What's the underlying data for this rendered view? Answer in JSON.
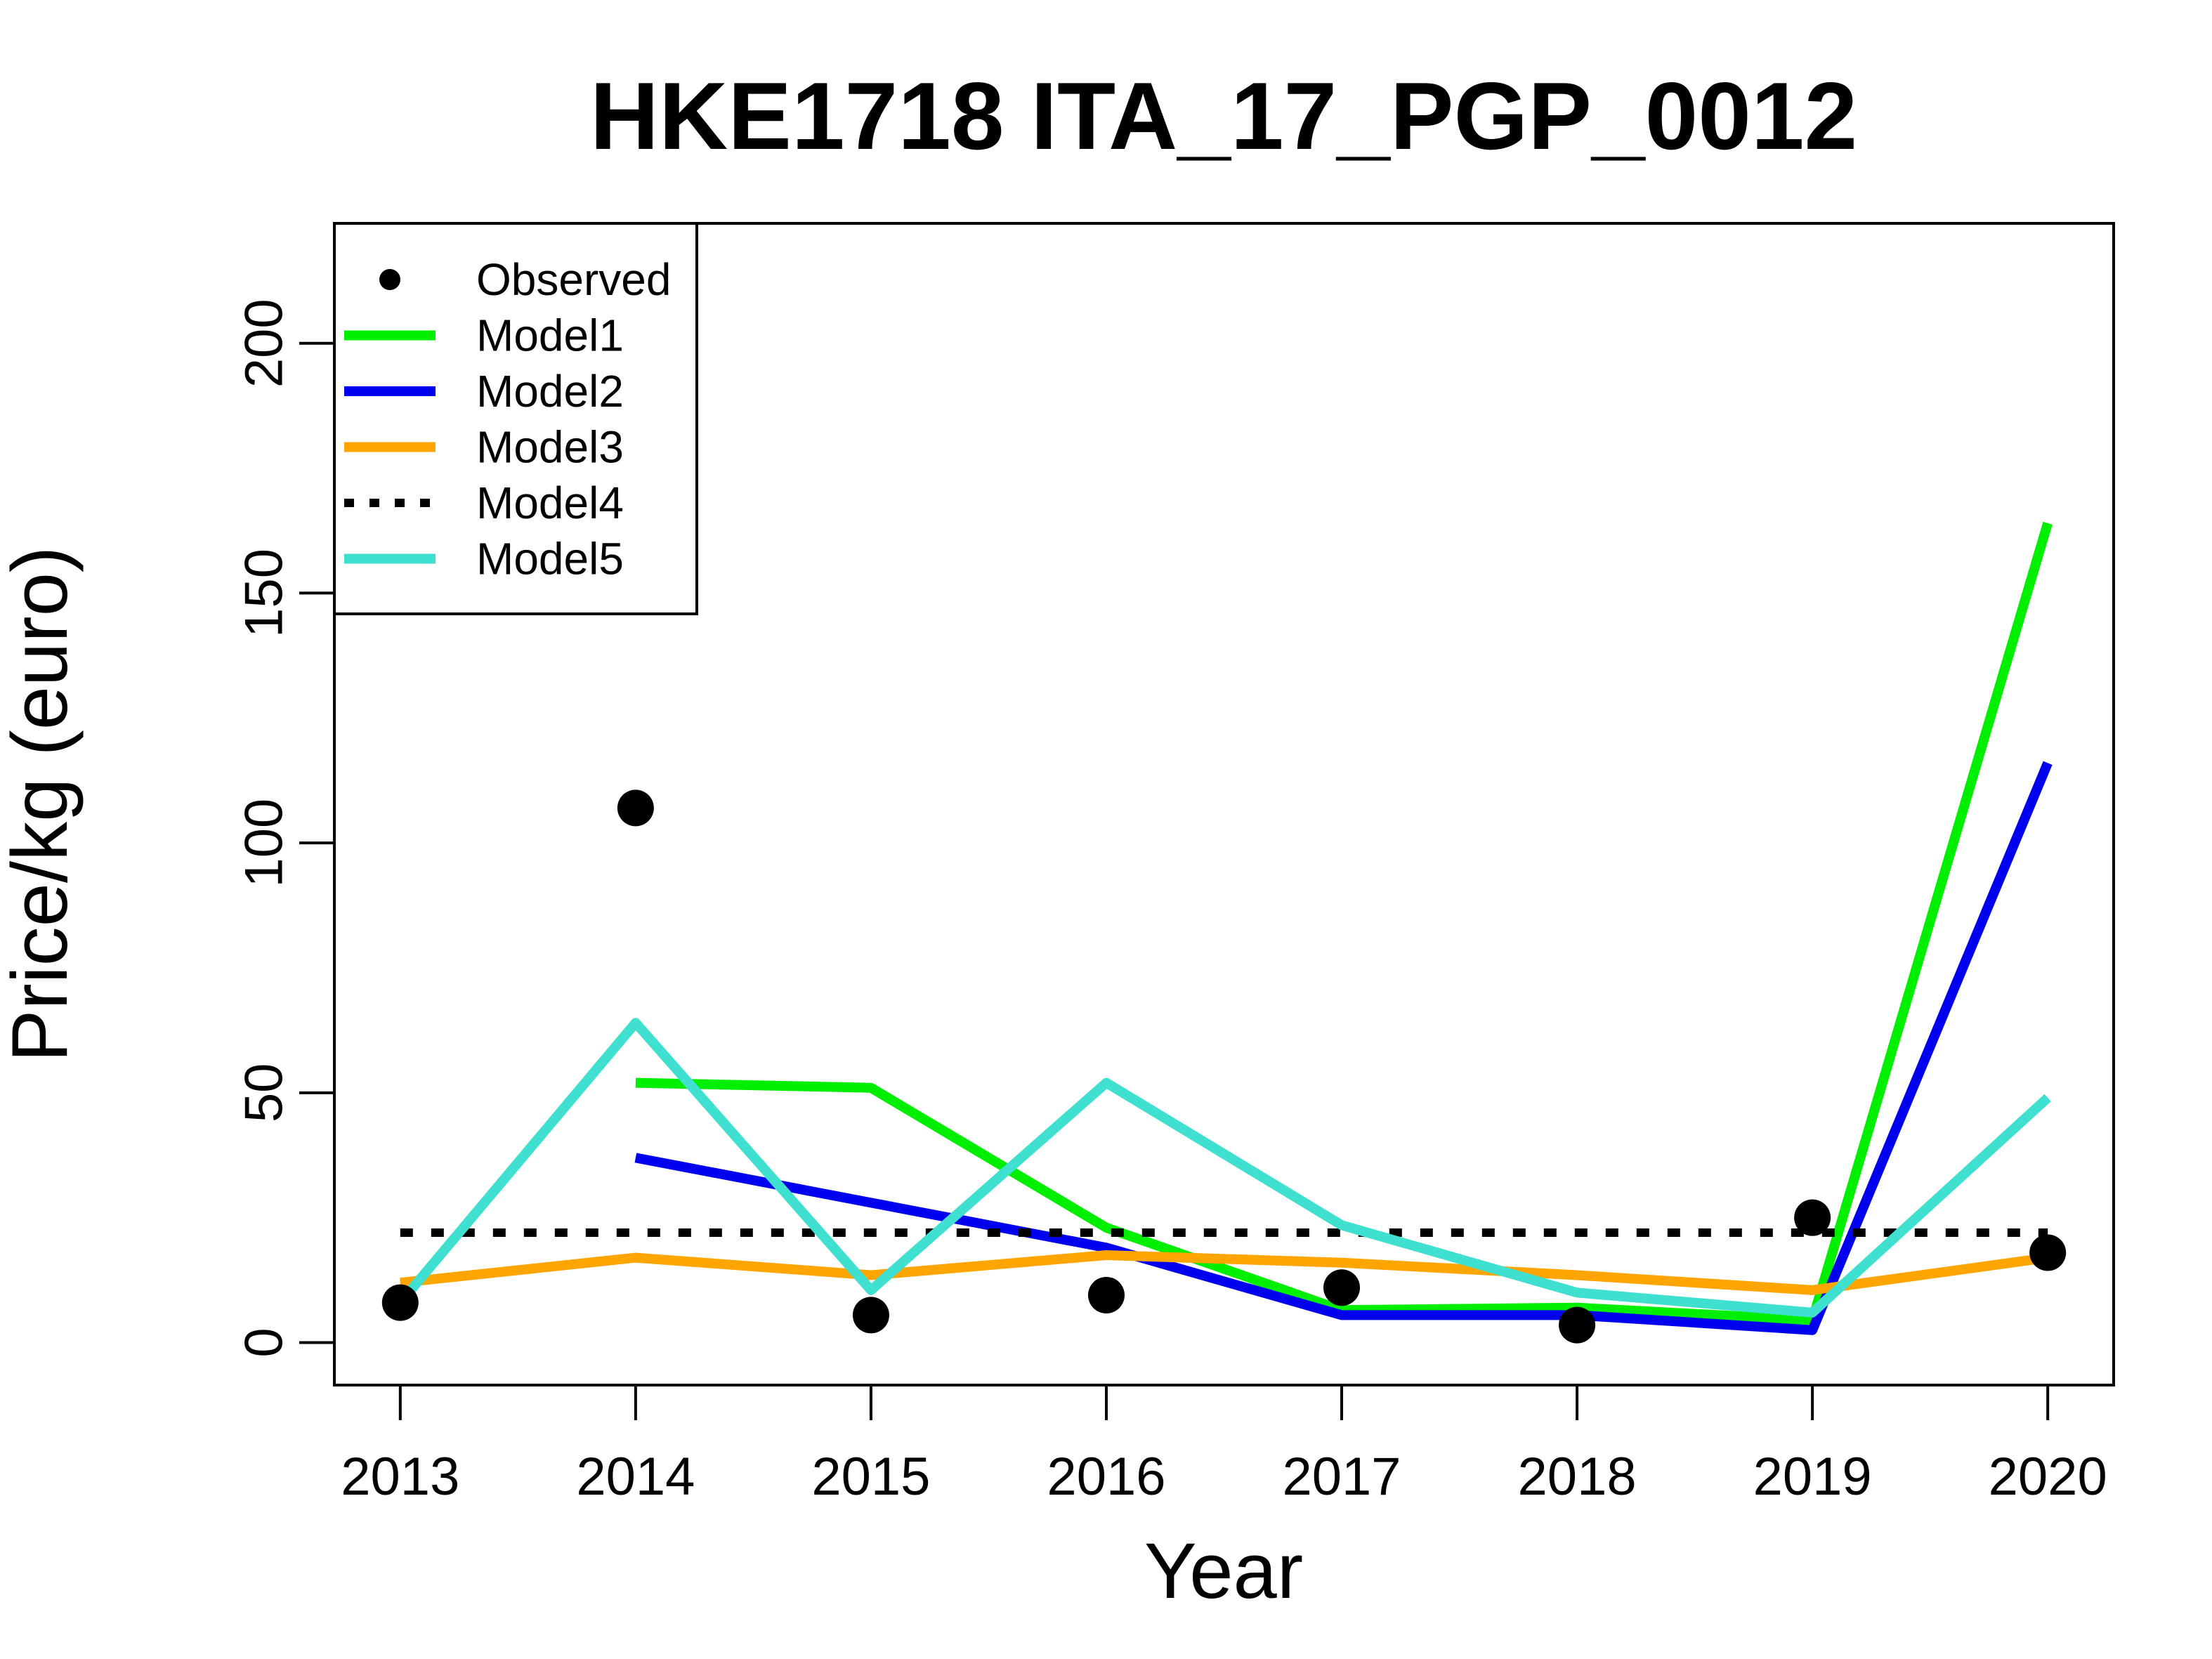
{
  "chart_data": {
    "type": "line",
    "title": "HKE1718 ITA_17_PGP_0012",
    "xlabel": "Year",
    "ylabel": "Price/kg (euro)",
    "x": [
      2013,
      2014,
      2015,
      2016,
      2017,
      2018,
      2019,
      2020
    ],
    "xlim": [
      2012.72,
      2020.28
    ],
    "ylim": [
      -8.5,
      224
    ],
    "yticks": [
      0,
      50,
      100,
      150,
      200
    ],
    "grid": false,
    "legend_position": "top-left",
    "observed": {
      "name": "Observed",
      "values": [
        8,
        107,
        5.5,
        9.5,
        11,
        3.5,
        25,
        18
      ],
      "color": "#000000"
    },
    "series": [
      {
        "name": "Model1",
        "color": "#00ee00",
        "style": "solid",
        "values": [
          null,
          52,
          51,
          23,
          6.5,
          7,
          4.5,
          164
        ]
      },
      {
        "name": "Model2",
        "color": "#0000ee",
        "style": "solid",
        "values": [
          null,
          37,
          28,
          19,
          5.5,
          5.5,
          2.5,
          116
        ]
      },
      {
        "name": "Model3",
        "color": "#ffa500",
        "style": "solid",
        "values": [
          12,
          17,
          13.5,
          17.5,
          16,
          13.5,
          10.5,
          17
        ]
      },
      {
        "name": "Model4",
        "color": "#000000",
        "style": "dotted",
        "values": [
          22,
          22,
          22,
          22,
          22,
          22,
          22,
          22
        ]
      },
      {
        "name": "Model5",
        "color": "#40e0d0",
        "style": "solid",
        "values": [
          8,
          64,
          10.5,
          52,
          23.5,
          10,
          6,
          49
        ]
      }
    ]
  }
}
